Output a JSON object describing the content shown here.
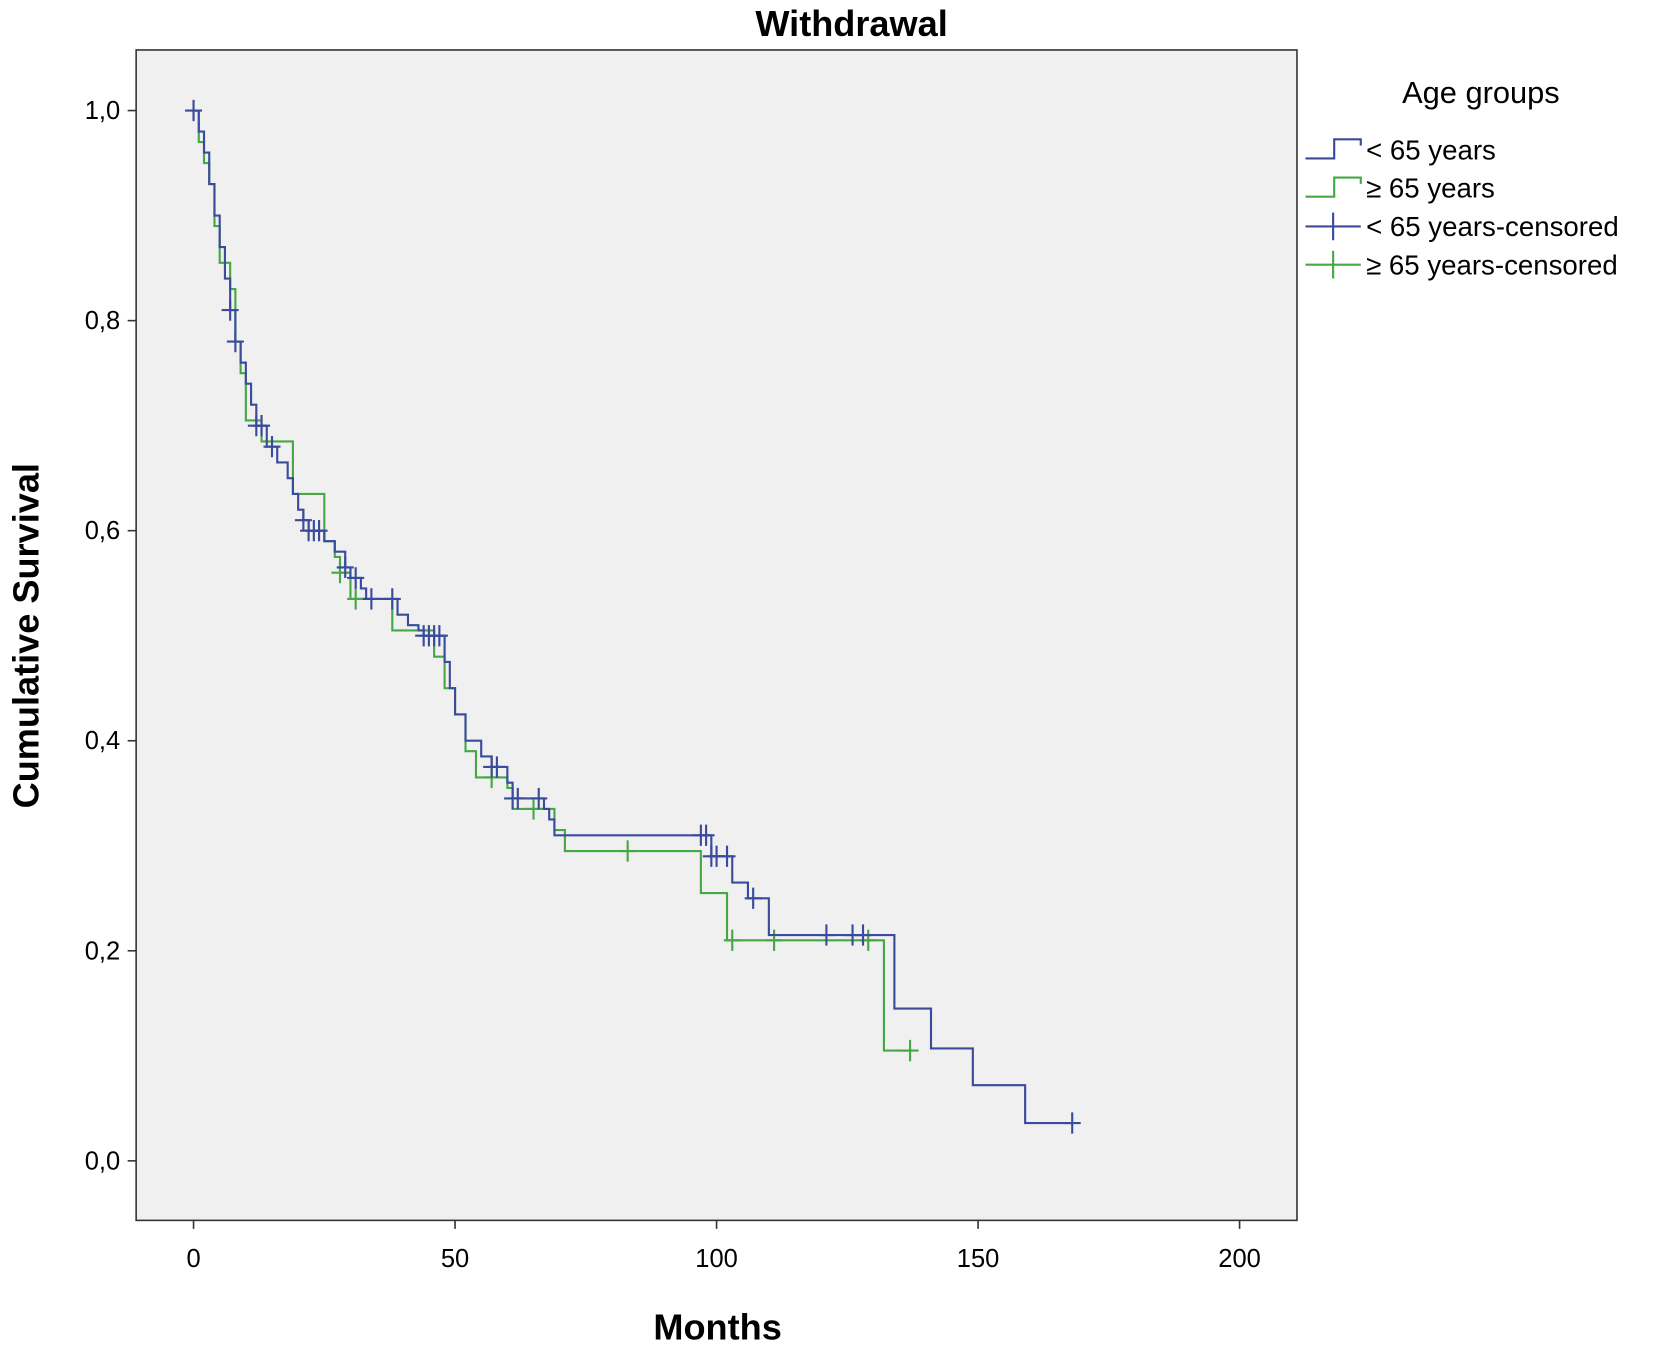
{
  "chart_data": {
    "type": "line",
    "subtype": "kaplan-meier",
    "title": "Withdrawal",
    "xlabel": "Months",
    "ylabel": "Cumulative Survival",
    "xlim": [
      -10,
      210
    ],
    "ylim": [
      -0.06,
      1.06
    ],
    "xticks": [
      0,
      50,
      100,
      150,
      200
    ],
    "xtick_labels": [
      "0",
      "50",
      "100",
      "150",
      "200"
    ],
    "yticks": [
      0,
      0.2,
      0.4,
      0.6,
      0.8,
      1.0
    ],
    "ytick_labels": [
      "0,0",
      "0,2",
      "0,4",
      "0,6",
      "0,8",
      "1,0"
    ],
    "grid": false,
    "legend": {
      "title": "Age groups",
      "placement": "right",
      "entries": [
        "< 65 years",
        "≥ 65 years",
        "< 65 years-censored",
        "≥ 65 years-censored"
      ]
    },
    "series": [
      {
        "name": "< 65 years",
        "color": "#3a4b9c",
        "end": 168,
        "steps": [
          [
            0,
            1.0
          ],
          [
            1,
            0.98
          ],
          [
            2,
            0.96
          ],
          [
            3,
            0.93
          ],
          [
            4,
            0.9
          ],
          [
            5,
            0.87
          ],
          [
            6,
            0.84
          ],
          [
            7,
            0.81
          ],
          [
            8,
            0.78
          ],
          [
            9,
            0.76
          ],
          [
            10,
            0.74
          ],
          [
            11,
            0.72
          ],
          [
            12,
            0.7
          ],
          [
            14,
            0.68
          ],
          [
            16,
            0.665
          ],
          [
            18,
            0.65
          ],
          [
            19,
            0.635
          ],
          [
            20,
            0.62
          ],
          [
            21,
            0.61
          ],
          [
            22,
            0.6
          ],
          [
            25,
            0.59
          ],
          [
            27,
            0.58
          ],
          [
            29,
            0.565
          ],
          [
            30,
            0.555
          ],
          [
            32,
            0.545
          ],
          [
            33,
            0.535
          ],
          [
            39,
            0.52
          ],
          [
            41,
            0.51
          ],
          [
            43,
            0.505
          ],
          [
            44,
            0.5
          ],
          [
            48,
            0.475
          ],
          [
            49,
            0.45
          ],
          [
            50,
            0.425
          ],
          [
            52,
            0.4
          ],
          [
            55,
            0.385
          ],
          [
            57,
            0.375
          ],
          [
            60,
            0.36
          ],
          [
            61,
            0.345
          ],
          [
            67,
            0.335
          ],
          [
            68,
            0.325
          ],
          [
            69,
            0.31
          ],
          [
            99,
            0.29
          ],
          [
            103,
            0.265
          ],
          [
            106,
            0.25
          ],
          [
            110,
            0.215
          ],
          [
            134,
            0.145
          ],
          [
            141,
            0.107
          ],
          [
            149,
            0.072
          ],
          [
            159,
            0.036
          ]
        ],
        "censored": [
          0,
          7,
          8,
          12,
          13,
          15,
          21,
          22,
          23,
          24,
          29,
          31,
          34,
          38,
          44,
          45,
          46,
          47,
          57,
          58,
          61,
          62,
          66,
          97,
          98,
          99,
          100,
          102,
          107,
          121,
          126,
          128,
          168
        ]
      },
      {
        "name": "≥ 65 years",
        "color": "#45a845",
        "end": 137,
        "steps": [
          [
            0,
            1.0
          ],
          [
            1,
            0.97
          ],
          [
            2,
            0.95
          ],
          [
            3,
            0.93
          ],
          [
            4,
            0.89
          ],
          [
            5,
            0.855
          ],
          [
            7,
            0.83
          ],
          [
            8,
            0.78
          ],
          [
            9,
            0.75
          ],
          [
            10,
            0.705
          ],
          [
            13,
            0.685
          ],
          [
            19,
            0.635
          ],
          [
            25,
            0.59
          ],
          [
            27,
            0.575
          ],
          [
            28,
            0.56
          ],
          [
            30,
            0.535
          ],
          [
            38,
            0.505
          ],
          [
            46,
            0.48
          ],
          [
            48,
            0.45
          ],
          [
            50,
            0.425
          ],
          [
            52,
            0.39
          ],
          [
            54,
            0.365
          ],
          [
            60,
            0.355
          ],
          [
            61,
            0.335
          ],
          [
            69,
            0.315
          ],
          [
            71,
            0.295
          ],
          [
            97,
            0.255
          ],
          [
            102,
            0.21
          ],
          [
            132,
            0.105
          ]
        ],
        "censored": [
          28,
          31,
          57,
          65,
          83,
          103,
          111,
          129,
          137
        ]
      }
    ]
  }
}
